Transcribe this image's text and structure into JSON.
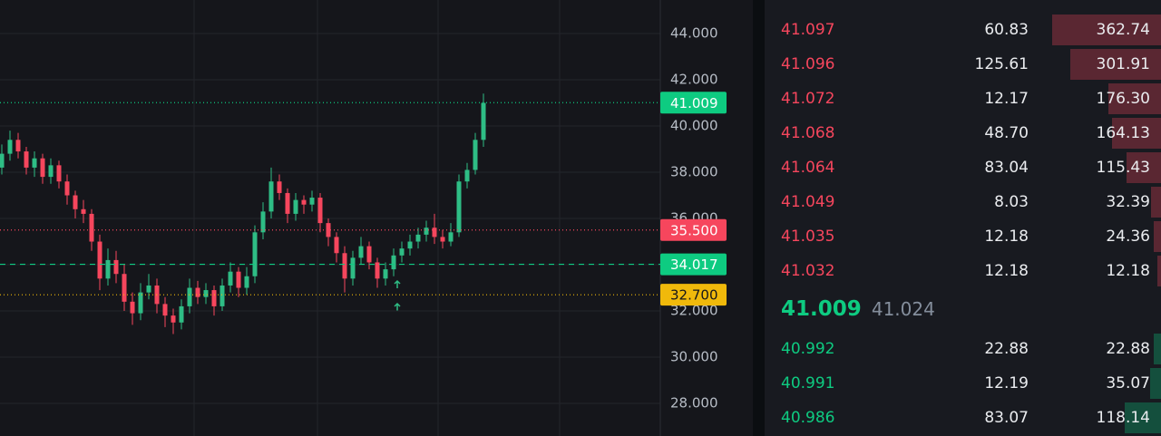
{
  "chart_data": {
    "type": "candlestick",
    "ylim": [
      26.59,
      45.45
    ],
    "yticks": [
      {
        "value": 28,
        "label": "28.000"
      },
      {
        "value": 30,
        "label": "30.000"
      },
      {
        "value": 32,
        "label": "32.000"
      },
      {
        "value": 34,
        "label": "34.000"
      },
      {
        "value": 36,
        "label": "36.000"
      },
      {
        "value": 38,
        "label": "38.000"
      },
      {
        "value": 40,
        "label": "40.000"
      },
      {
        "value": 42,
        "label": "42.000"
      },
      {
        "value": 44,
        "label": "44.000"
      }
    ],
    "grid": true,
    "up_color": "#2ebd85",
    "down_color": "#f6465d",
    "candles": [
      [
        38.2,
        39.2,
        37.9,
        38.8
      ],
      [
        38.8,
        39.8,
        38.5,
        39.4
      ],
      [
        39.4,
        39.7,
        38.6,
        38.9
      ],
      [
        38.9,
        39.1,
        37.9,
        38.2
      ],
      [
        38.2,
        38.9,
        37.8,
        38.6
      ],
      [
        38.6,
        38.8,
        37.5,
        37.8
      ],
      [
        37.8,
        38.6,
        37.5,
        38.3
      ],
      [
        38.3,
        38.5,
        37.3,
        37.6
      ],
      [
        37.6,
        37.9,
        36.6,
        37.0
      ],
      [
        37.0,
        37.2,
        36.0,
        36.4
      ],
      [
        36.4,
        36.8,
        35.8,
        36.2
      ],
      [
        36.2,
        36.4,
        34.6,
        35.0
      ],
      [
        35.0,
        35.3,
        32.9,
        33.4
      ],
      [
        33.4,
        34.7,
        33.1,
        34.2
      ],
      [
        34.2,
        34.6,
        33.2,
        33.6
      ],
      [
        33.6,
        34.0,
        32.0,
        32.4
      ],
      [
        32.4,
        32.8,
        31.4,
        31.9
      ],
      [
        31.9,
        33.2,
        31.6,
        32.8
      ],
      [
        32.8,
        33.6,
        32.5,
        33.1
      ],
      [
        33.1,
        33.4,
        31.9,
        32.3
      ],
      [
        32.3,
        32.6,
        31.3,
        31.8
      ],
      [
        31.8,
        32.1,
        31.0,
        31.5
      ],
      [
        31.5,
        32.5,
        31.2,
        32.2
      ],
      [
        32.2,
        33.4,
        31.9,
        33.0
      ],
      [
        33.0,
        33.3,
        32.3,
        32.6
      ],
      [
        32.6,
        33.2,
        32.3,
        32.9
      ],
      [
        32.9,
        33.1,
        31.8,
        32.2
      ],
      [
        32.2,
        33.4,
        32.0,
        33.1
      ],
      [
        33.1,
        34.1,
        32.8,
        33.7
      ],
      [
        33.7,
        33.9,
        32.6,
        33.0
      ],
      [
        33.0,
        33.9,
        32.7,
        33.5
      ],
      [
        33.5,
        35.7,
        33.2,
        35.4
      ],
      [
        35.4,
        36.7,
        35.1,
        36.3
      ],
      [
        36.3,
        38.2,
        36.0,
        37.6
      ],
      [
        37.6,
        37.9,
        36.8,
        37.1
      ],
      [
        37.1,
        37.3,
        35.8,
        36.2
      ],
      [
        36.2,
        37.1,
        35.9,
        36.8
      ],
      [
        36.8,
        37.0,
        36.2,
        36.6
      ],
      [
        36.6,
        37.2,
        36.3,
        36.9
      ],
      [
        36.9,
        37.1,
        35.4,
        35.8
      ],
      [
        35.8,
        36.0,
        34.8,
        35.2
      ],
      [
        35.2,
        35.4,
        34.1,
        34.5
      ],
      [
        34.5,
        34.8,
        32.8,
        33.4
      ],
      [
        33.4,
        34.6,
        33.1,
        34.3
      ],
      [
        34.3,
        35.2,
        34.0,
        34.8
      ],
      [
        34.8,
        35.0,
        33.8,
        34.1
      ],
      [
        34.1,
        34.3,
        33.0,
        33.4
      ],
      [
        33.4,
        34.1,
        33.1,
        33.8
      ],
      [
        33.8,
        34.7,
        33.5,
        34.4
      ],
      [
        34.4,
        35.0,
        34.1,
        34.7
      ],
      [
        34.7,
        35.3,
        34.4,
        35.0
      ],
      [
        35.0,
        35.6,
        34.7,
        35.3
      ],
      [
        35.3,
        35.9,
        35.0,
        35.6
      ],
      [
        35.6,
        36.2,
        34.9,
        35.2
      ],
      [
        35.2,
        35.5,
        34.7,
        35.0
      ],
      [
        35.0,
        35.8,
        34.8,
        35.4
      ],
      [
        35.4,
        37.9,
        35.2,
        37.6
      ],
      [
        37.6,
        38.4,
        37.3,
        38.1
      ],
      [
        38.1,
        39.7,
        37.9,
        39.4
      ],
      [
        39.4,
        41.4,
        39.1,
        41.0
      ]
    ],
    "price_lines": [
      {
        "value": 41.009,
        "label": "41.009",
        "color": "#0ecb81",
        "dash": "1 3"
      },
      {
        "value": 35.5,
        "label": "35.500",
        "color": "#f6465d",
        "dash": "1 3"
      },
      {
        "value": 34.017,
        "label": "34.017",
        "color": "#0ecb81",
        "dash": "6 5"
      },
      {
        "value": 32.7,
        "label": "32.700",
        "color": "#f0b90b",
        "dash": "1 3"
      }
    ]
  },
  "order_book": {
    "asks": [
      [
        "41.097",
        "60.83",
        "362.74"
      ],
      [
        "41.096",
        "125.61",
        "301.91"
      ],
      [
        "41.072",
        "12.17",
        "176.30"
      ],
      [
        "41.068",
        "48.70",
        "164.13"
      ],
      [
        "41.064",
        "83.04",
        "115.43"
      ],
      [
        "41.049",
        "8.03",
        "32.39"
      ],
      [
        "41.035",
        "12.18",
        "24.36"
      ],
      [
        "41.032",
        "12.18",
        "12.18"
      ]
    ],
    "last_price": "41.009",
    "mark_price": "41.024",
    "bids": [
      [
        "40.992",
        "22.88",
        "22.88"
      ],
      [
        "40.991",
        "12.19",
        "35.07"
      ],
      [
        "40.986",
        "83.07",
        "118.14"
      ]
    ]
  }
}
